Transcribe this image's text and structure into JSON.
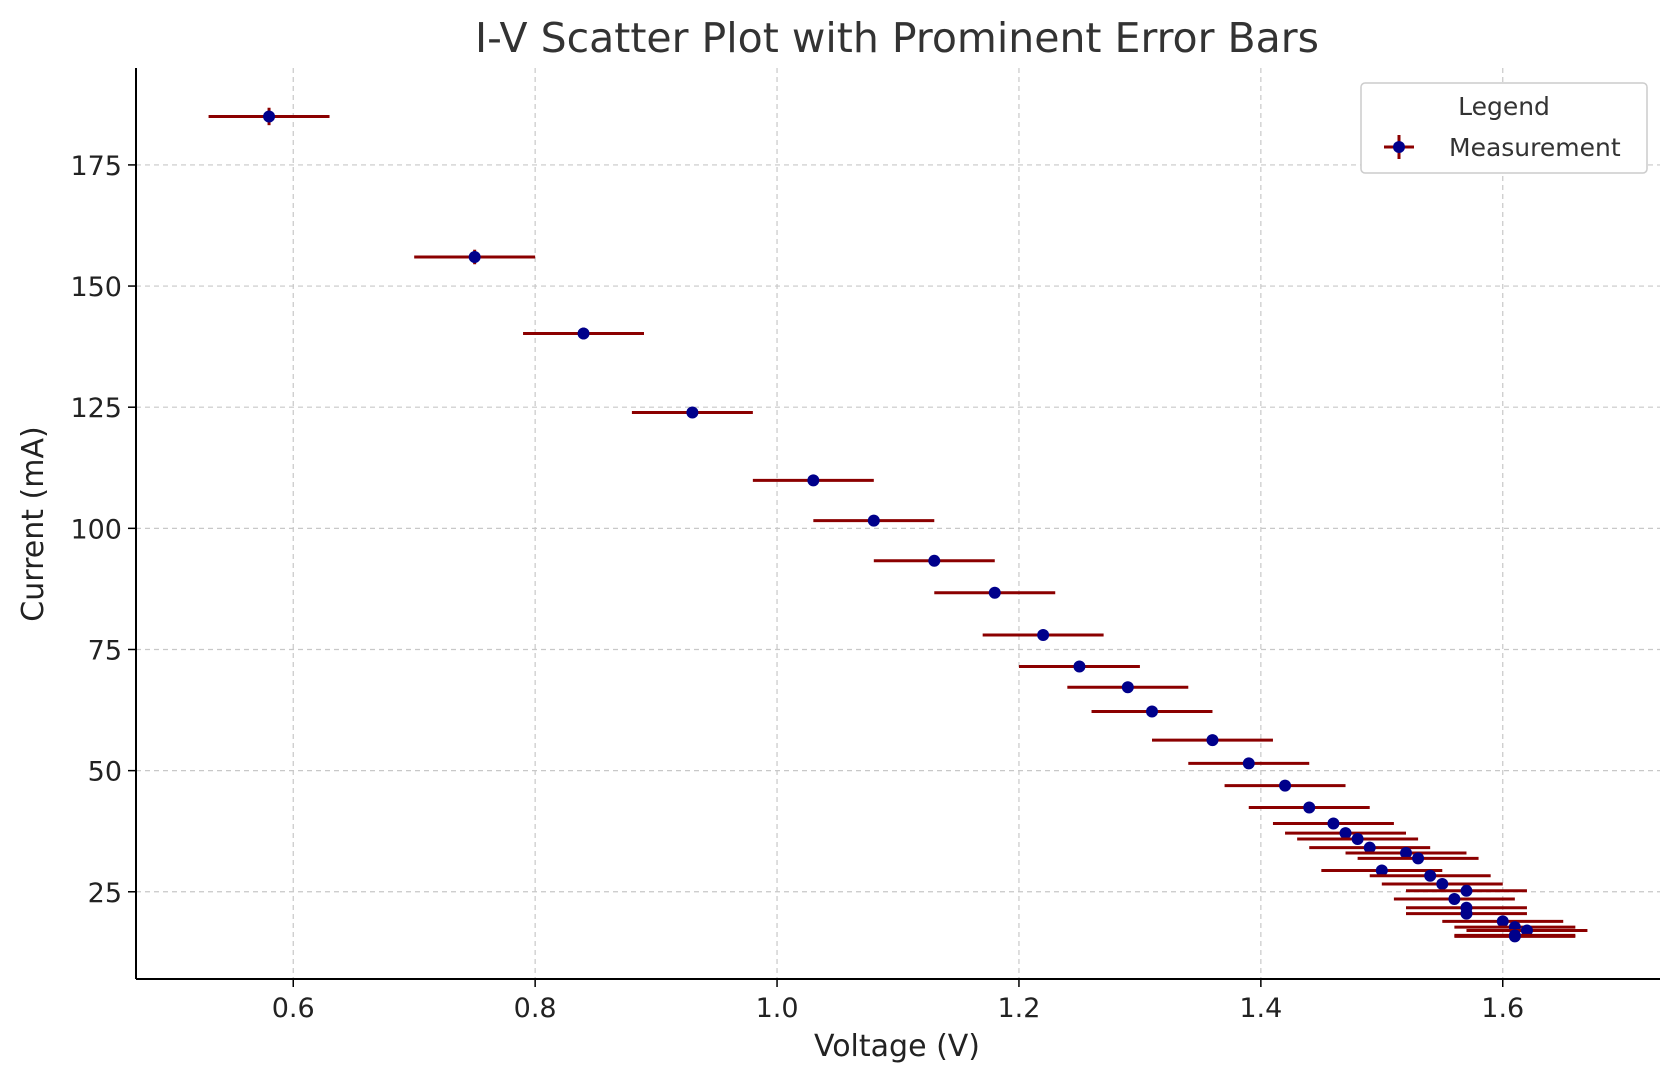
{
  "chart_data": {
    "type": "scatter",
    "title": "I-V Scatter Plot with Prominent Error Bars",
    "xlabel": "Voltage (V)",
    "ylabel": "Current (mA)",
    "xlim": [
      0.47,
      1.73
    ],
    "ylim": [
      7,
      195
    ],
    "xticks": [
      0.6,
      0.8,
      1.0,
      1.2,
      1.4,
      1.6
    ],
    "xtick_labels": [
      "0.6",
      "0.8",
      "1.0",
      "1.2",
      "1.4",
      "1.6"
    ],
    "yticks": [
      25,
      50,
      75,
      100,
      125,
      150,
      175
    ],
    "ytick_labels": [
      "25",
      "50",
      "75",
      "100",
      "125",
      "150",
      "175"
    ],
    "grid": true,
    "legend": {
      "title": "Legend",
      "position": "top-right",
      "entries": [
        "Measurement"
      ]
    },
    "colors": {
      "marker": "#00008B",
      "errorbar": "#8B0000",
      "grid": "#c8c8c8"
    },
    "series": [
      {
        "name": "Measurement",
        "x_err": 0.05,
        "points": [
          {
            "x": 0.58,
            "y": 185.0,
            "yerr": 1.8
          },
          {
            "x": 0.75,
            "y": 156.0,
            "yerr": 1.5
          },
          {
            "x": 0.84,
            "y": 140.2,
            "yerr": 1.2
          },
          {
            "x": 0.93,
            "y": 123.9,
            "yerr": 1.0
          },
          {
            "x": 1.03,
            "y": 109.9,
            "yerr": 0.9
          },
          {
            "x": 1.08,
            "y": 101.6,
            "yerr": 0.8
          },
          {
            "x": 1.13,
            "y": 93.3,
            "yerr": 0.7
          },
          {
            "x": 1.18,
            "y": 86.7,
            "yerr": 0.7
          },
          {
            "x": 1.22,
            "y": 78.0,
            "yerr": 0.6
          },
          {
            "x": 1.25,
            "y": 71.5,
            "yerr": 0.6
          },
          {
            "x": 1.29,
            "y": 67.2,
            "yerr": 0.5
          },
          {
            "x": 1.31,
            "y": 62.2,
            "yerr": 0.5
          },
          {
            "x": 1.36,
            "y": 56.3,
            "yerr": 0.5
          },
          {
            "x": 1.39,
            "y": 51.5,
            "yerr": 0.4
          },
          {
            "x": 1.42,
            "y": 46.9,
            "yerr": 0.4
          },
          {
            "x": 1.44,
            "y": 42.4,
            "yerr": 0.4
          },
          {
            "x": 1.46,
            "y": 39.1,
            "yerr": 0.3
          },
          {
            "x": 1.47,
            "y": 37.1,
            "yerr": 0.3
          },
          {
            "x": 1.48,
            "y": 35.9,
            "yerr": 0.3
          },
          {
            "x": 1.49,
            "y": 34.1,
            "yerr": 0.3
          },
          {
            "x": 1.52,
            "y": 33.0,
            "yerr": 0.3
          },
          {
            "x": 1.53,
            "y": 31.9,
            "yerr": 0.3
          },
          {
            "x": 1.5,
            "y": 29.4,
            "yerr": 0.3
          },
          {
            "x": 1.54,
            "y": 28.3,
            "yerr": 0.3
          },
          {
            "x": 1.55,
            "y": 26.6,
            "yerr": 0.3
          },
          {
            "x": 1.57,
            "y": 25.2,
            "yerr": 0.2
          },
          {
            "x": 1.56,
            "y": 23.5,
            "yerr": 0.2
          },
          {
            "x": 1.57,
            "y": 21.7,
            "yerr": 0.2
          },
          {
            "x": 1.57,
            "y": 20.5,
            "yerr": 0.2
          },
          {
            "x": 1.6,
            "y": 18.9,
            "yerr": 0.2
          },
          {
            "x": 1.61,
            "y": 17.7,
            "yerr": 0.2
          },
          {
            "x": 1.62,
            "y": 17.0,
            "yerr": 0.2
          },
          {
            "x": 1.61,
            "y": 16.0,
            "yerr": 0.2
          },
          {
            "x": 1.61,
            "y": 15.8,
            "yerr": 0.2
          }
        ]
      }
    ]
  }
}
